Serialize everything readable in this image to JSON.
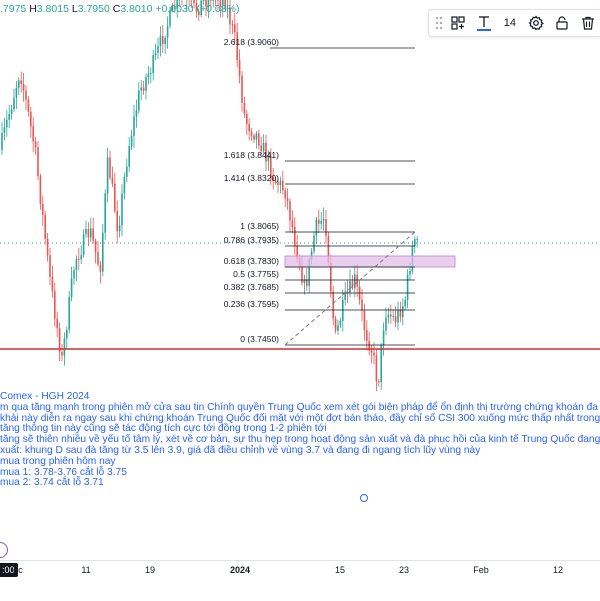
{
  "ohlc": {
    "prev_value": ".7975",
    "high_key": "H",
    "high": "3.8015",
    "low_key": "L",
    "low": "3.7950",
    "close_key": "C",
    "close": "3.8010",
    "change": "+0.0030",
    "change_pct": "(+0.08%)"
  },
  "toolbar": {
    "font_size": "14",
    "icons": [
      "drag-handle-icon",
      "group-objects-icon",
      "text-tool-icon",
      "settings-icon",
      "lock-icon",
      "trash-icon"
    ]
  },
  "fib_levels": [
    {
      "label": "2.618 (3.9060)",
      "price": 3.906
    },
    {
      "label": "1.618 (3.8441)",
      "price": 3.8441
    },
    {
      "label": "1.414 (3.8320)",
      "price": 3.832
    },
    {
      "label": "1 (3.8065)",
      "price": 3.8065
    },
    {
      "label": "0.786 (3.7935)",
      "price": 3.7935
    },
    {
      "label": "0.618 (3.7830)",
      "price": 3.783
    },
    {
      "label": "0.5 (3.7755)",
      "price": 3.7755
    },
    {
      "label": "0.382 (3.7685)",
      "price": 3.7685
    },
    {
      "label": "0.236 (3.7595)",
      "price": 3.7595
    },
    {
      "label": "0 (3.7450)",
      "price": 3.745
    }
  ],
  "note_lines": [
    "Comex  - HGH 2024",
    "m qua  tăng mạnh trong phiên mở cửa sau tin Chính quyền Trung Quốc xem xét gói biện pháp để ổn định thị trường chứng khoán đa",
    "khải này diễn ra ngay sau khi chứng khoán Trung Quốc đối mặt với một đợt bán tháo, đầy chỉ số CSI 300 xuống mức thấp nhất trong",
    "tăng thông tin này cũng sẽ tác động tích cực tới đồng trong 1-2 phiên tới",
    "tăng sẽ thiên nhiều về yếu tố tâm lý, xét về cơ bản, sự thu hẹp trong hoạt động sản xuất và đà phục hồi của kinh tế Trung Quốc đang",
    "xuất: khung D sau đà tăng từ 3.5 lên 3.9, giá đã điều chỉnh về vùng 3.7 và đang đi ngang tích lũy vùng này",
    "mua trong phiên hôm nay",
    "mua 1: 3.78-3.76 cắt lỗ 3.75",
    "mua 2: 3.74 cắt lỗ 3.71"
  ],
  "x_axis": {
    "time_badge": ":00",
    "labels": [
      {
        "text": "ec",
        "bold": false
      },
      {
        "text": "11",
        "bold": false
      },
      {
        "text": "19",
        "bold": false
      },
      {
        "text": "2024",
        "bold": true
      },
      {
        "text": "15",
        "bold": false
      },
      {
        "text": "23",
        "bold": false
      },
      {
        "text": "Feb",
        "bold": false
      },
      {
        "text": "12",
        "bold": false
      }
    ]
  },
  "colors": {
    "up": "#26a69a",
    "down": "#ef5350",
    "horizontal_line": "#d32f2f",
    "zone": "#e1bee7",
    "note_text": "#2962ff"
  }
}
